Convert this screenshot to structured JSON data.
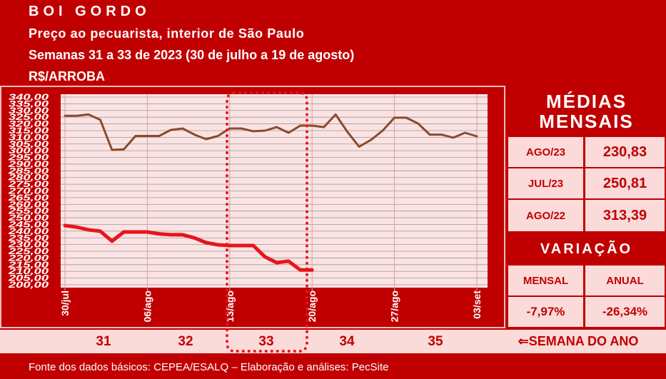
{
  "header": {
    "title": "BOI GORDO",
    "subtitle": "Preço ao pecuarista, interior de São Paulo",
    "period": "Semanas 31 a 33 de 2023 (30 de julho a 19 de agosto)",
    "unit": "R$/ARROBA"
  },
  "chart_data": {
    "type": "line",
    "categories": [
      "30/jul",
      null,
      null,
      null,
      null,
      null,
      null,
      "06/ago",
      null,
      null,
      null,
      null,
      null,
      null,
      "13/ago",
      null,
      null,
      null,
      null,
      null,
      null,
      "20/ago",
      null,
      null,
      null,
      null,
      null,
      null,
      "27/ago",
      null,
      null,
      null,
      null,
      null,
      null,
      "03/set"
    ],
    "series": [
      {
        "color": "#8b4a2b",
        "values": [
          326,
          326,
          327,
          323,
          300.6,
          301,
          311,
          311,
          311,
          315.5,
          316.6,
          312,
          308.6,
          311,
          316.6,
          316.6,
          314.5,
          315,
          317.6,
          313.4,
          318.7,
          318.7,
          317.6,
          327,
          314,
          303,
          308,
          315,
          324.6,
          324.6,
          320.3,
          312,
          312,
          309.7,
          313.4,
          310.7
        ]
      },
      {
        "color": "#e8141c",
        "values": [
          244.2,
          243,
          241,
          240,
          232.5,
          239.4,
          239.4,
          239.4,
          238,
          237.3,
          237.3,
          235,
          231.4,
          229.8,
          229.3,
          229.3,
          229.3,
          220.8,
          216.5,
          217.6,
          211,
          211,
          null,
          null,
          null,
          null,
          null,
          null,
          null,
          null,
          null,
          null,
          null,
          null,
          null,
          null
        ]
      }
    ],
    "ylim": [
      200,
      340
    ],
    "yticks": [
      {
        "value": 200,
        "label": "200,00"
      },
      {
        "value": 205,
        "label": "205,00"
      },
      {
        "value": 210,
        "label": "210,00"
      },
      {
        "value": 215,
        "label": "215,00"
      },
      {
        "value": 220,
        "label": "220,00"
      },
      {
        "value": 225,
        "label": "225,00"
      },
      {
        "value": 230,
        "label": "230,00"
      },
      {
        "value": 235,
        "label": "235,00"
      },
      {
        "value": 240,
        "label": "240,00"
      },
      {
        "value": 245,
        "label": "245,00"
      },
      {
        "value": 250,
        "label": "250,00"
      },
      {
        "value": 255,
        "label": "255,00"
      },
      {
        "value": 260,
        "label": "260,00"
      },
      {
        "value": 265,
        "label": "265,00"
      },
      {
        "value": 270,
        "label": "270,00"
      },
      {
        "value": 275,
        "label": "275,00"
      },
      {
        "value": 280,
        "label": "280,00"
      },
      {
        "value": 285,
        "label": "285,00"
      },
      {
        "value": 290,
        "label": "290,00"
      },
      {
        "value": 295,
        "label": "295,00"
      },
      {
        "value": 300,
        "label": "300,00"
      },
      {
        "value": 305,
        "label": "305,00"
      },
      {
        "value": 310,
        "label": "310,00"
      },
      {
        "value": 315,
        "label": "315,00"
      },
      {
        "value": 320,
        "label": "320,00"
      },
      {
        "value": 325,
        "label": "325,00"
      },
      {
        "value": 330,
        "label": "330,00"
      },
      {
        "value": 335,
        "label": "335,00"
      },
      {
        "value": 340,
        "label": "340,00"
      }
    ],
    "grid": true
  },
  "side_panel": {
    "title": "MÉDIAS MENSAIS",
    "rows": [
      [
        "AGO/23",
        "230,83"
      ],
      [
        "JUL/23",
        "250,81"
      ],
      [
        "AGO/22",
        "313,39"
      ]
    ],
    "variation_title": "VARIAÇÃO",
    "variation_headers": [
      "MENSAL",
      "ANUAL"
    ],
    "variation_values": [
      "-7,97%",
      "-26,34%"
    ]
  },
  "weeks": {
    "numbers": [
      "31",
      "32",
      "33",
      "34",
      "35"
    ],
    "label": "⇐SEMANA DO ANO"
  },
  "footer": "Fonte dos dados básicos: CEPEA/ESALQ – Elaboração e análises: PecSite"
}
